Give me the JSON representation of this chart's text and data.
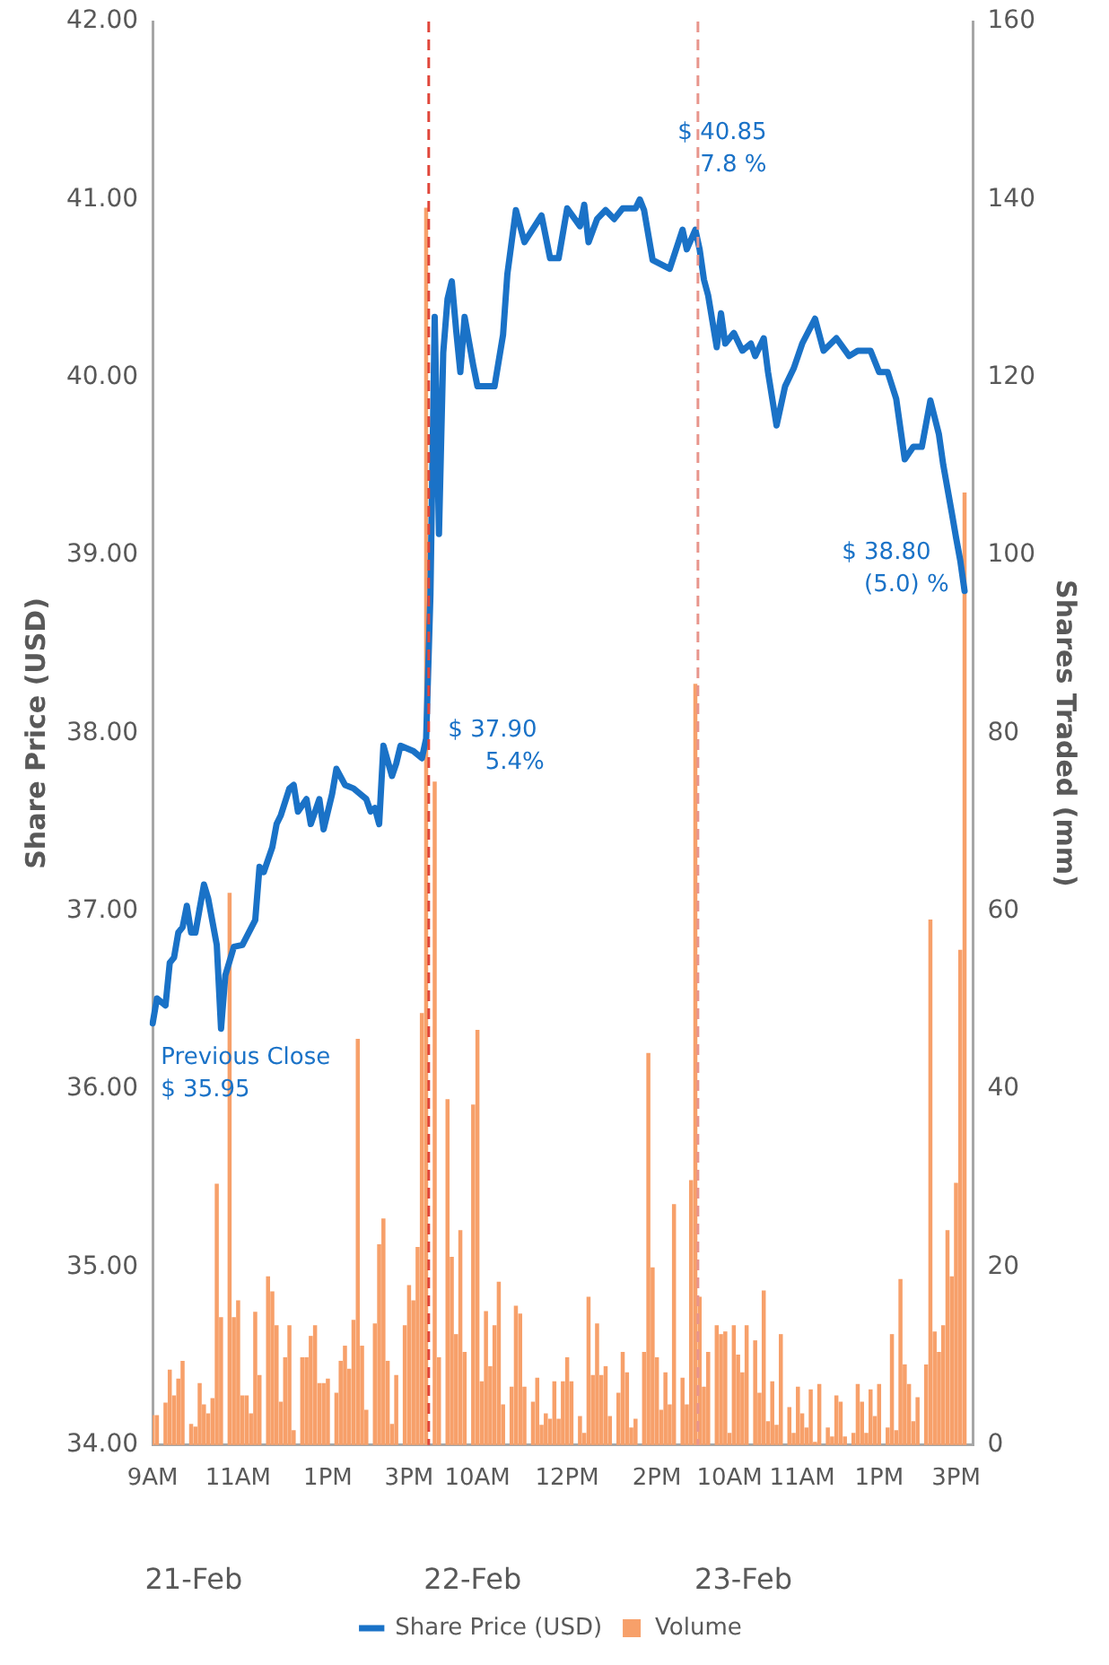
{
  "chart_data": {
    "type": "bar",
    "ylabel": "Share Price (USD)",
    "y2label": "Shares Traded (mm)",
    "categories": [
      "9AM",
      null,
      null,
      null,
      null,
      null,
      null,
      null,
      null,
      null,
      null,
      null,
      null,
      null,
      null,
      null,
      null,
      null,
      null,
      null,
      "11AM",
      null,
      null,
      null,
      null,
      null,
      null,
      null,
      null,
      null,
      null,
      null,
      null,
      null,
      null,
      null,
      null,
      null,
      null,
      null,
      null,
      "1PM",
      null,
      null,
      null,
      null,
      null,
      null,
      null,
      null,
      null,
      null,
      null,
      null,
      null,
      null,
      null,
      null,
      null,
      null,
      "3PM",
      null,
      null,
      null,
      null,
      null,
      null,
      null,
      null,
      null,
      null,
      null,
      null,
      null,
      null,
      null,
      "10AM",
      null,
      null,
      null,
      null,
      null,
      null,
      null,
      null,
      null,
      null,
      null,
      null,
      null,
      null,
      null,
      null,
      null,
      null,
      null,
      null,
      "12PM",
      null,
      null,
      null,
      null,
      null,
      null,
      null,
      null,
      null,
      null,
      null,
      null,
      null,
      null,
      null,
      null,
      null,
      null,
      null,
      null,
      "2PM",
      null,
      null,
      null,
      null,
      null,
      null,
      null,
      null,
      null,
      null,
      null,
      null,
      null,
      null,
      null,
      null,
      "10AM",
      null,
      null,
      null,
      null,
      null,
      null,
      null,
      null,
      null,
      null,
      null,
      null,
      null,
      null,
      null,
      null,
      "11AM",
      null,
      null,
      null,
      null,
      null,
      null,
      null,
      null,
      null,
      null,
      null,
      null,
      null,
      null,
      null,
      null,
      null,
      "1PM",
      null,
      null,
      null,
      null,
      null,
      null,
      null,
      null,
      null,
      null,
      null,
      null,
      null,
      null,
      null,
      null,
      null,
      "3PM",
      null,
      null,
      null,
      null
    ],
    "ylim": [
      34,
      42
    ],
    "yticks": [
      {
        "value": 34,
        "label": "34.00"
      },
      {
        "value": 35,
        "label": "35.00"
      },
      {
        "value": 36,
        "label": "36.00"
      },
      {
        "value": 37,
        "label": "37.00"
      },
      {
        "value": 38,
        "label": "38.00"
      },
      {
        "value": 39,
        "label": "39.00"
      },
      {
        "value": 40,
        "label": "40.00"
      },
      {
        "value": 41,
        "label": "41.00"
      },
      {
        "value": 42,
        "label": "42.00"
      }
    ],
    "y2lim": [
      0,
      160
    ],
    "y2ticks": [
      0,
      20,
      40,
      60,
      80,
      100,
      120,
      140,
      160
    ],
    "series": [
      {
        "name": "Volume",
        "axis": "y2",
        "color": "#f7a06a",
        "values": [
          3.3,
          3.3,
          null,
          4.7,
          8.4,
          5.5,
          7.4,
          9.4,
          null,
          2.3,
          2.0,
          6.9,
          4.5,
          3.5,
          5.2,
          29.3,
          14.3,
          null,
          62,
          14.3,
          16.2,
          5.5,
          5.5,
          3.5,
          14.9,
          7.8,
          null,
          18.9,
          17.2,
          13.4,
          4.8,
          9.8,
          13.4,
          1.6,
          null,
          9.8,
          9.8,
          12.2,
          13.4,
          6.9,
          6.9,
          7.4,
          null,
          5.8,
          9.4,
          11.1,
          8.5,
          14,
          45.6,
          11.1,
          3.9,
          null,
          13.6,
          22.5,
          25.4,
          9.4,
          2.3,
          7.8,
          null,
          13.4,
          17.9,
          16.2,
          22.2,
          48.5,
          139,
          null,
          74.5,
          9.8,
          null,
          38.8,
          21.1,
          12.4,
          24.1,
          10.4,
          null,
          38.2,
          46.6,
          7.1,
          15,
          8.8,
          13.4,
          18.3,
          4.5,
          null,
          6.5,
          15.6,
          14.7,
          6.5,
          null,
          4.8,
          7.5,
          2.2,
          3.5,
          2.9,
          7.1,
          2.9,
          7.1,
          9.8,
          7.1,
          null,
          3.2,
          1.3,
          16.6,
          7.8,
          13.6,
          7.8,
          8.8,
          3.2,
          null,
          5.8,
          10.4,
          8.1,
          1.9,
          2.9,
          null,
          10.4,
          44,
          19.9,
          9.8,
          3.9,
          8.1,
          4.5,
          27,
          null,
          7.5,
          4.5,
          29.7,
          85.5,
          16.6,
          6.5,
          10.4,
          null,
          13.4,
          12.4,
          12.7,
          1.3,
          13.4,
          10.1,
          8.1,
          13.4,
          null,
          11.7,
          5.8,
          17.3,
          2.6,
          7.1,
          2.2,
          12.4,
          null,
          4.2,
          1.3,
          6.5,
          3.5,
          1.9,
          6.2,
          0.3,
          6.8,
          null,
          1.9,
          0.9,
          5.5,
          4.8,
          0.9,
          null,
          1.3,
          6.8,
          4.8,
          1.3,
          6.2,
          3.2,
          6.8,
          null,
          1.9,
          12.4,
          1.6,
          18.6,
          9,
          6.8,
          2.6,
          5.3,
          null,
          9,
          59,
          12.7,
          10.4,
          13.4,
          24.1,
          18.9,
          29.4,
          55.6,
          107,
          null,
          null
        ]
      },
      {
        "name": "Share Price (USD)",
        "type": "line",
        "color": "#1a72c7",
        "values": [
          36.37,
          36.51,
          null,
          36.47,
          36.71,
          36.74,
          36.88,
          36.91,
          37.03,
          36.88,
          36.88,
          null,
          37.15,
          37.07,
          null,
          36.81,
          36.34,
          36.64,
          null,
          36.8,
          null,
          36.81,
          null,
          null,
          36.95,
          37.25,
          37.22,
          null,
          37.36,
          37.49,
          37.54,
          null,
          37.69,
          37.71,
          37.56,
          null,
          37.63,
          37.49,
          null,
          37.63,
          37.46,
          null,
          37.66,
          37.8,
          null,
          37.71,
          null,
          37.69,
          null,
          null,
          37.63,
          37.56,
          37.58,
          37.49,
          37.93,
          null,
          37.76,
          37.83,
          37.93,
          null,
          null,
          37.9,
          null,
          37.86,
          37.97,
          38.78,
          40.34,
          39.12,
          40.14,
          40.44,
          40.54,
          40.27,
          40.03,
          40.34,
          null,
          40.07,
          39.95,
          null,
          null,
          null,
          39.95,
          null,
          40.24,
          40.58,
          null,
          40.94,
          null,
          40.76,
          null,
          null,
          null,
          40.91,
          null,
          40.67,
          null,
          40.67,
          null,
          40.95,
          null,
          null,
          40.85,
          40.97,
          40.76,
          null,
          40.89,
          null,
          40.94,
          null,
          40.89,
          null,
          40.95,
          null,
          null,
          40.95,
          41.0,
          40.94,
          null,
          40.66,
          null,
          null,
          null,
          40.61,
          null,
          null,
          40.83,
          40.72,
          null,
          40.83,
          40.72,
          40.55,
          40.46,
          null,
          40.17,
          40.36,
          40.19,
          null,
          40.25,
          null,
          40.15,
          null,
          40.19,
          40.12,
          null,
          40.22,
          40.03,
          null,
          39.73,
          null,
          39.95,
          null,
          40.05,
          null,
          40.19,
          null,
          null,
          40.33,
          null,
          40.15,
          null,
          null,
          40.22,
          null,
          null,
          40.12,
          null,
          40.15,
          null,
          null,
          40.15,
          null,
          40.03,
          null,
          40.03,
          null,
          39.88,
          null,
          39.54,
          null,
          39.61,
          null,
          39.61,
          null,
          39.87,
          null,
          39.68,
          39.51,
          null,
          39.24,
          39.1,
          38.97,
          38.8,
          null,
          null
        ]
      }
    ],
    "annotations": [
      "Previous Close\n$ 35.95",
      "$ 37.90\n     5.4%",
      "$ 40.85\n   7.8 %",
      "$ 38.80\n   (5.0) %",
      "21-Feb",
      "22-Feb",
      "23-Feb"
    ],
    "legend": "bottom",
    "grid": false,
    "marker": "none",
    "line_style": "solid"
  }
}
